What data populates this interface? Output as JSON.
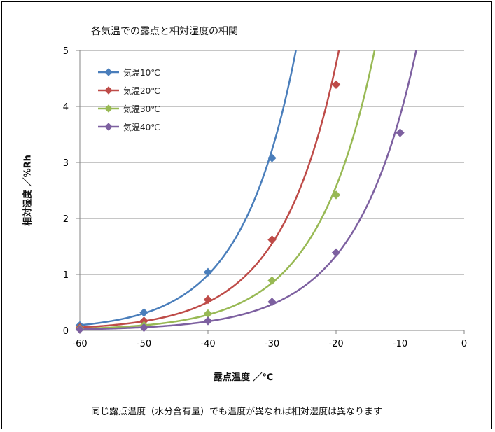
{
  "chart_data": {
    "type": "line",
    "title": "各気温での露点と相対湿度の相関",
    "xlabel": "露点温度 ／℃",
    "ylabel": "相対湿度 ／%Rh",
    "caption": "同じ露点温度（水分含有量）でも温度が異なれば相対湿度は異なります",
    "xlim": [
      -60,
      0
    ],
    "ylim": [
      0,
      5
    ],
    "xticks": [
      -60,
      -50,
      -40,
      -30,
      -20,
      -10,
      0
    ],
    "yticks": [
      0,
      1,
      2,
      3,
      4,
      5
    ],
    "grid": "horizontal",
    "legend_position": "top-left",
    "marker": "diamond",
    "series": [
      {
        "name": "気温10℃",
        "color": "#4a7ebb",
        "x": [
          -60,
          -50,
          -40,
          -30
        ],
        "y": [
          0.09,
          0.32,
          1.04,
          3.08
        ]
      },
      {
        "name": "気温20℃",
        "color": "#be4b48",
        "x": [
          -60,
          -50,
          -40,
          -30,
          -20
        ],
        "y": [
          0.05,
          0.17,
          0.55,
          1.62,
          4.39
        ]
      },
      {
        "name": "気温30℃",
        "color": "#98b954",
        "x": [
          -60,
          -50,
          -40,
          -30,
          -20
        ],
        "y": [
          0.03,
          0.09,
          0.3,
          0.89,
          2.42
        ]
      },
      {
        "name": "気温40℃",
        "color": "#7d60a0",
        "x": [
          -60,
          -50,
          -40,
          -30,
          -20,
          -10
        ],
        "y": [
          0.02,
          0.05,
          0.17,
          0.51,
          1.39,
          3.53
        ]
      }
    ]
  }
}
